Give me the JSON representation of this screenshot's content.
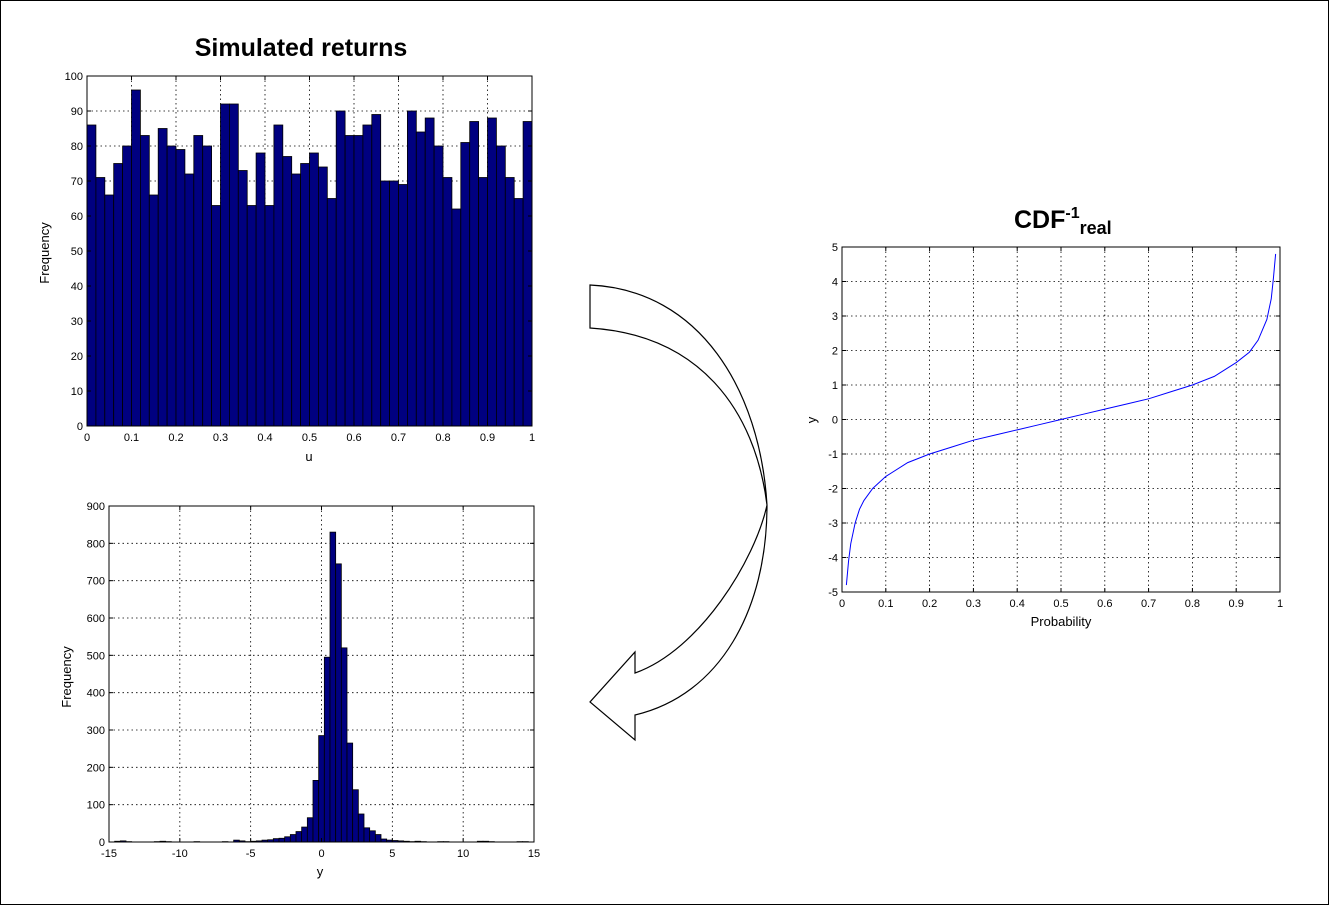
{
  "chart_data": [
    {
      "id": "hist-u",
      "type": "bar",
      "title": "Simulated returns",
      "xlabel": "u",
      "ylabel": "Frequency",
      "xlim": [
        0,
        1
      ],
      "ylim": [
        0,
        100
      ],
      "xticks": [
        0,
        0.1,
        0.2,
        0.3,
        0.4,
        0.5,
        0.6,
        0.7,
        0.8,
        0.9,
        1
      ],
      "xtick_labels": [
        "0",
        "0.1",
        "0.2",
        "0.3",
        "0.4",
        "0.5",
        "0.6",
        "0.7",
        "0.8",
        "0.9",
        "1"
      ],
      "yticks": [
        0,
        10,
        20,
        30,
        40,
        50,
        60,
        70,
        80,
        90,
        100
      ],
      "bar_color": "#000080",
      "grid": true,
      "bin_range": [
        0,
        1
      ],
      "values": [
        86,
        71,
        66,
        75,
        80,
        96,
        83,
        66,
        85,
        80,
        79,
        72,
        83,
        80,
        63,
        92,
        92,
        73,
        63,
        78,
        63,
        86,
        77,
        72,
        75,
        78,
        74,
        65,
        90,
        83,
        83,
        86,
        89,
        70,
        70,
        69,
        90,
        84,
        88,
        80,
        71,
        62,
        81,
        87,
        71,
        88,
        80,
        71,
        65,
        87
      ]
    },
    {
      "id": "hist-y",
      "type": "bar",
      "title": "",
      "xlabel": "y",
      "ylabel": "Frequency",
      "xlim": [
        -15,
        15
      ],
      "ylim": [
        0,
        900
      ],
      "xticks": [
        -15,
        -10,
        -5,
        0,
        5,
        10,
        15
      ],
      "xtick_labels": [
        "-15",
        "-10",
        "-5",
        "0",
        "5",
        "10",
        "15"
      ],
      "yticks": [
        0,
        100,
        200,
        300,
        400,
        500,
        600,
        700,
        800,
        900
      ],
      "bar_color": "#000080",
      "grid": true,
      "bin_range": [
        -15,
        15
      ],
      "values": [
        0,
        2,
        3,
        1,
        0,
        0,
        0,
        0,
        1,
        2,
        1,
        0,
        0,
        0,
        0,
        1,
        0,
        0,
        0,
        0,
        1,
        0,
        5,
        3,
        1,
        2,
        3,
        5,
        6,
        9,
        10,
        14,
        20,
        28,
        40,
        65,
        165,
        285,
        495,
        830,
        745,
        520,
        265,
        140,
        75,
        38,
        30,
        20,
        8,
        5,
        4,
        3,
        2,
        1,
        2,
        1,
        0,
        0,
        1,
        1,
        0,
        0,
        0,
        0,
        0,
        2,
        2,
        1,
        0,
        0,
        0,
        0,
        1,
        1,
        0
      ]
    },
    {
      "id": "icdf",
      "type": "line",
      "title": "CDF",
      "title_sup": "-1",
      "title_sub": "real",
      "xlabel": "Probability",
      "ylabel": "y",
      "xlim": [
        0,
        1
      ],
      "ylim": [
        -5,
        5
      ],
      "xticks": [
        0,
        0.1,
        0.2,
        0.3,
        0.4,
        0.5,
        0.6,
        0.7,
        0.8,
        0.9,
        1
      ],
      "xtick_labels": [
        "0",
        "0.1",
        "0.2",
        "0.3",
        "0.4",
        "0.5",
        "0.6",
        "0.7",
        "0.8",
        "0.9",
        "1"
      ],
      "yticks": [
        -5,
        -4,
        -3,
        -2,
        -1,
        0,
        1,
        2,
        3,
        4,
        5
      ],
      "ytick_labels": [
        "-5",
        "-4",
        "-3",
        "-2",
        "-1",
        "0",
        "1",
        "2",
        "3",
        "4",
        "5"
      ],
      "line_color": "#0000ff",
      "grid": true,
      "x": [
        0.01,
        0.015,
        0.02,
        0.03,
        0.04,
        0.05,
        0.07,
        0.1,
        0.15,
        0.2,
        0.25,
        0.3,
        0.35,
        0.4,
        0.45,
        0.5,
        0.55,
        0.6,
        0.65,
        0.7,
        0.75,
        0.8,
        0.85,
        0.9,
        0.93,
        0.95,
        0.97,
        0.98,
        0.985,
        0.99
      ],
      "y": [
        -4.8,
        -4.1,
        -3.6,
        -3.0,
        -2.6,
        -2.35,
        -2.0,
        -1.65,
        -1.25,
        -1.0,
        -0.8,
        -0.6,
        -0.45,
        -0.3,
        -0.15,
        0.0,
        0.15,
        0.3,
        0.45,
        0.6,
        0.8,
        1.0,
        1.25,
        1.65,
        1.95,
        2.3,
        2.9,
        3.5,
        4.1,
        4.8
      ]
    }
  ]
}
